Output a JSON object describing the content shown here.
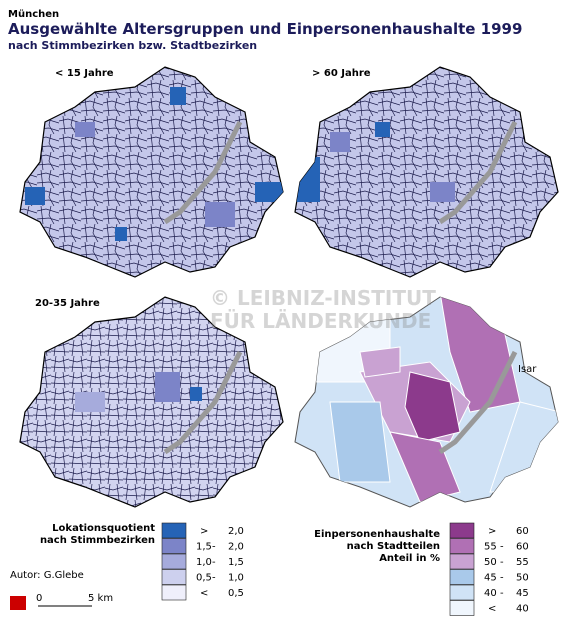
{
  "header": {
    "city": "München",
    "title": "Ausgewählte Altersgruppen und Einpersonenhaushalte 1999",
    "subtitle": "nach Stimmbezirken bzw. Stadtbezirken"
  },
  "panels": [
    {
      "label": "< 15 Jahre"
    },
    {
      "label": "> 60 Jahre"
    },
    {
      "label": "20-35 Jahre"
    }
  ],
  "river": "Isar",
  "watermark": [
    "© LEIBNIZ-INSTITUT",
    "FÜR LÄNDERKUNDE"
  ],
  "legend_left": {
    "title": [
      "Lokationsquotient",
      "nach Stimmbezirken"
    ],
    "items": [
      {
        "color": "#2563b6",
        "text": [
          ">",
          "2,0"
        ]
      },
      {
        "color": "#7c84c8",
        "text": [
          "1,5",
          "-",
          "2,0"
        ]
      },
      {
        "color": "#a6abdc",
        "text": [
          "1,0",
          "-",
          "1,5"
        ]
      },
      {
        "color": "#cdd0ee",
        "text": [
          "0,5",
          "-",
          "1,0"
        ]
      },
      {
        "color": "#efeffb",
        "text": [
          "<",
          "0,5"
        ]
      }
    ]
  },
  "legend_right": {
    "title": [
      "Einpersonenhaushalte",
      "nach Stadtteilen"
    ],
    "subtitle": "Anteil in %",
    "items": [
      {
        "color": "#8c3a8c",
        "text": [
          ">",
          "60"
        ]
      },
      {
        "color": "#b070b4",
        "text": [
          "55",
          "-",
          "60"
        ]
      },
      {
        "color": "#c9a2d2",
        "text": [
          "50",
          "-",
          "55"
        ]
      },
      {
        "color": "#a9c9ea",
        "text": [
          "45",
          "-",
          "50"
        ]
      },
      {
        "color": "#d0e3f6",
        "text": [
          "40",
          "-",
          "45"
        ]
      },
      {
        "color": "#f0f6fd",
        "text": [
          "<",
          "40"
        ]
      }
    ]
  },
  "author": "Autor: G.Glebe",
  "scale": {
    "start": "0",
    "end": "5 km"
  }
}
